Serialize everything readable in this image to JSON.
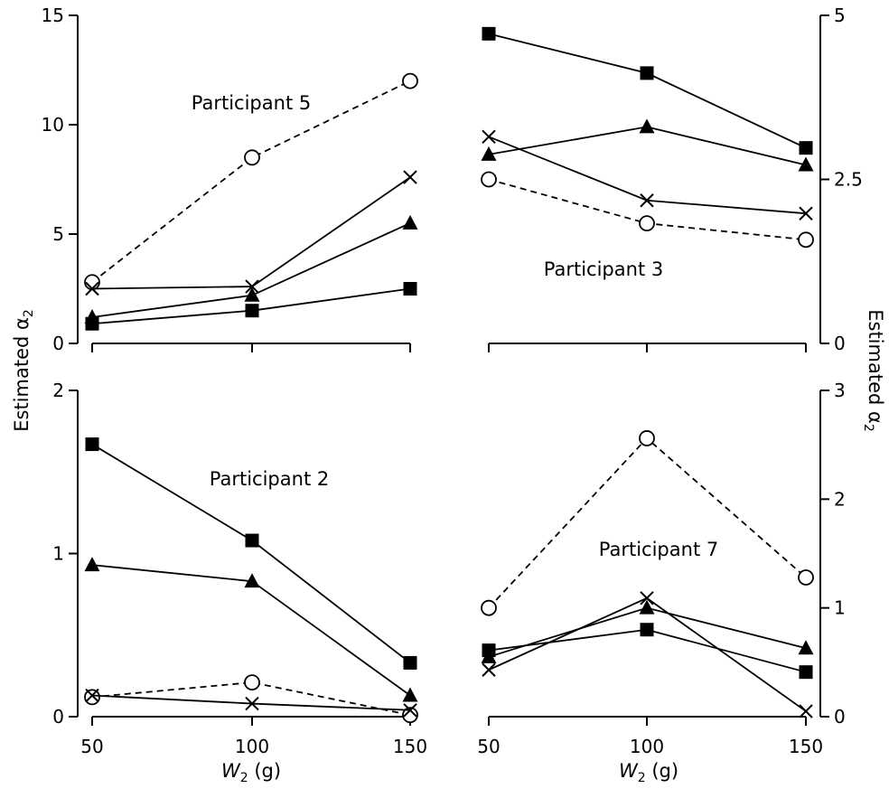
{
  "y_axis_label": "Estimated α",
  "y_axis_label_sub": "2",
  "x_axis_label_var": "W",
  "x_axis_label_sub": "2",
  "x_axis_label_unit": " (g)",
  "chart_data": [
    {
      "type": "line",
      "title": "Participant 5",
      "x": [
        50,
        100,
        150
      ],
      "ylim": [
        0,
        15
      ],
      "yticks": [
        0,
        5,
        10,
        15
      ],
      "xticks": [
        50,
        100,
        150
      ],
      "series": [
        {
          "marker": "circle",
          "dash": true,
          "values": [
            2.8,
            8.5,
            12
          ]
        },
        {
          "marker": "cross",
          "values": [
            2.5,
            2.6,
            7.6
          ]
        },
        {
          "marker": "triangle",
          "values": [
            1.2,
            2.2,
            5.5
          ]
        },
        {
          "marker": "square",
          "values": [
            0.9,
            1.5,
            2.5
          ]
        }
      ]
    },
    {
      "type": "line",
      "title": "Participant 3",
      "x": [
        50,
        100,
        150
      ],
      "ylim": [
        0,
        5
      ],
      "yticks": [
        0,
        2.5,
        5
      ],
      "xticks": [
        50,
        100,
        150
      ],
      "series": [
        {
          "marker": "square",
          "values": [
            4.72,
            4.12,
            2.98
          ]
        },
        {
          "marker": "triangle",
          "values": [
            2.88,
            3.3,
            2.72
          ]
        },
        {
          "marker": "cross",
          "values": [
            3.15,
            2.18,
            1.98
          ]
        },
        {
          "marker": "circle",
          "dash": true,
          "values": [
            2.5,
            1.83,
            1.58
          ]
        }
      ]
    },
    {
      "type": "line",
      "title": "Participant 2",
      "x": [
        50,
        100,
        150
      ],
      "ylim": [
        0,
        2
      ],
      "yticks": [
        0,
        1,
        2
      ],
      "xticks": [
        50,
        100,
        150
      ],
      "series": [
        {
          "marker": "square",
          "values": [
            1.67,
            1.08,
            0.33
          ]
        },
        {
          "marker": "triangle",
          "values": [
            0.93,
            0.83,
            0.13
          ]
        },
        {
          "marker": "circle",
          "dash": true,
          "values": [
            0.12,
            0.21,
            0.01
          ]
        },
        {
          "marker": "cross",
          "values": [
            0.13,
            0.08,
            0.04
          ]
        }
      ]
    },
    {
      "type": "line",
      "title": "Participant 7",
      "x": [
        50,
        100,
        150
      ],
      "ylim": [
        0,
        3
      ],
      "yticks": [
        0,
        1,
        2,
        3
      ],
      "xticks": [
        50,
        100,
        150
      ],
      "series": [
        {
          "marker": "circle",
          "dash": true,
          "values": [
            1.0,
            2.56,
            1.28
          ]
        },
        {
          "marker": "cross",
          "values": [
            0.43,
            1.09,
            0.05
          ]
        },
        {
          "marker": "triangle",
          "values": [
            0.55,
            1.0,
            0.63
          ]
        },
        {
          "marker": "square",
          "values": [
            0.61,
            0.8,
            0.41
          ]
        }
      ]
    }
  ]
}
